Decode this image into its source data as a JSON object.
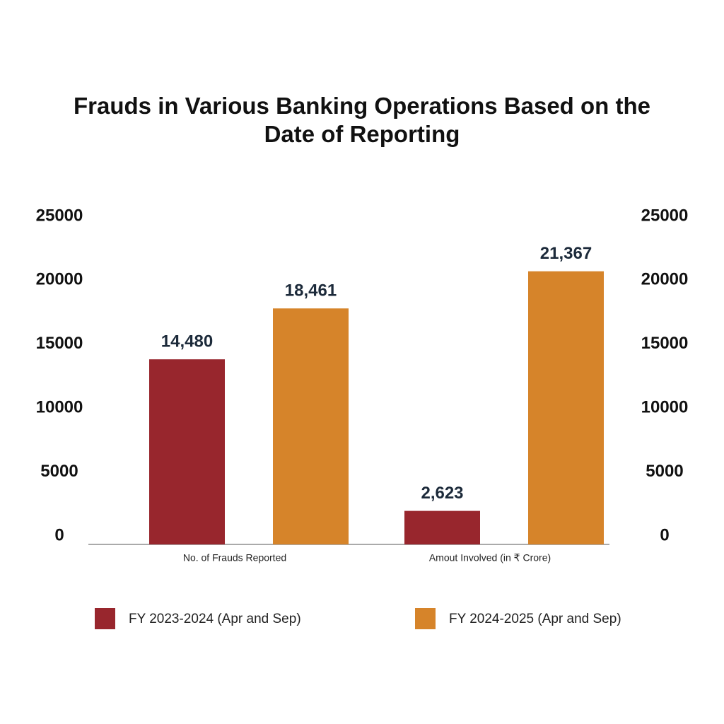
{
  "chart_data": {
    "type": "bar",
    "title": "Frauds in Various Banking Operations Based on the Date of Reporting",
    "categories": [
      "No. of Frauds Reported",
      "Amout Involved (in ₹ Crore)"
    ],
    "series": [
      {
        "name": "FY 2023-2024 (Apr and Sep)",
        "color": "#98262d",
        "values": [
          14480,
          2623
        ],
        "value_labels": [
          "14,480",
          "2,623"
        ]
      },
      {
        "name": "FY 2024-2025 (Apr and Sep)",
        "color": "#d6842a",
        "values": [
          18461,
          21367
        ],
        "value_labels": [
          "18,461",
          "21,367"
        ]
      }
    ],
    "ylim": [
      0,
      25000
    ],
    "yticks": [
      0,
      5000,
      10000,
      15000,
      20000,
      25000
    ],
    "y2lim": [
      0,
      25000
    ],
    "y2ticks": [
      0,
      5000,
      10000,
      15000,
      20000,
      25000
    ]
  }
}
